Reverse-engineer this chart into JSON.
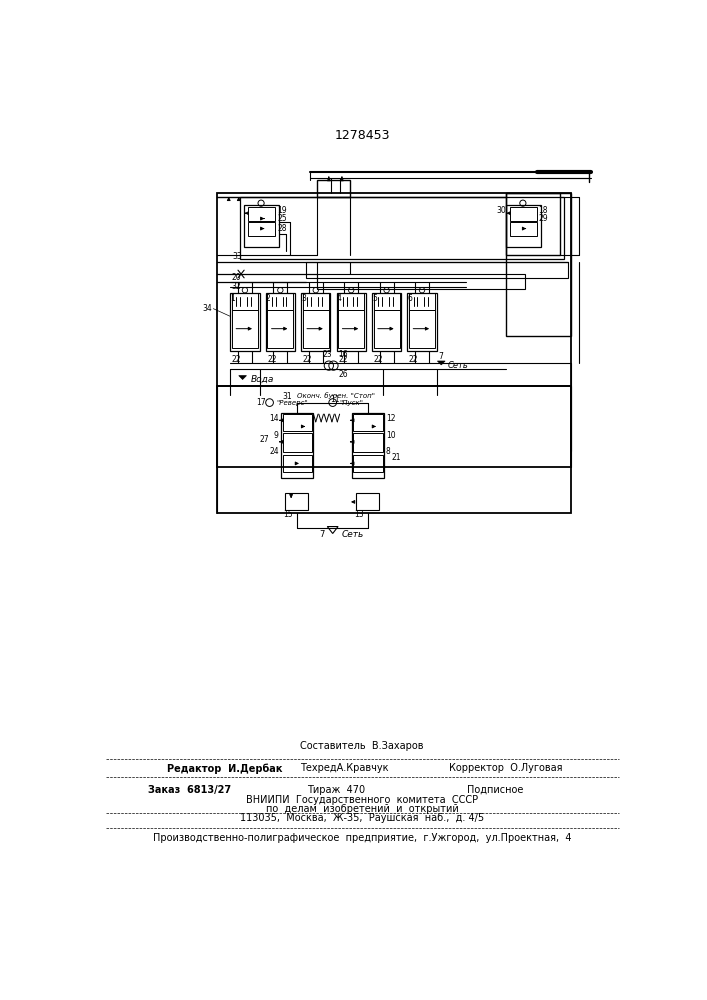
{
  "title": "1278453",
  "bg": "#ffffff",
  "footer": {
    "sestavitel": "Составитель  В.Захаров",
    "editor": "Редактор  И.Дербак",
    "techred": "ТехредА.Кравчук",
    "corrector": "Корректор  О.Луговая",
    "order": "Заказ  6813/27",
    "tiraj": "Тираж  470",
    "podp": "Подписное",
    "vn1": "ВНИИПИ  Государственного  комитета  СССР",
    "vn2": "по  делам  изобретений  и  открытий",
    "addr": "113035,  Москва,  Ж-35,  Раушская  наб.,  д. 4/5",
    "prod": "Производственно-полиграфическое  предприятие,  г.Ужгород,  ул.Проектная,  4"
  },
  "relay_labels": [
    "1",
    "2",
    "3",
    "4",
    "5",
    "6"
  ],
  "bottom_labels": [
    "22",
    "22",
    "22",
    "22",
    "22",
    "22"
  ],
  "net_label": "Сеть",
  "voda_label": "Вода",
  "stop_label": "Оконч. бурен. \"Стоп\"",
  "revers_label": "\"Реверс\"",
  "pusk_label": "\"Пуск\""
}
